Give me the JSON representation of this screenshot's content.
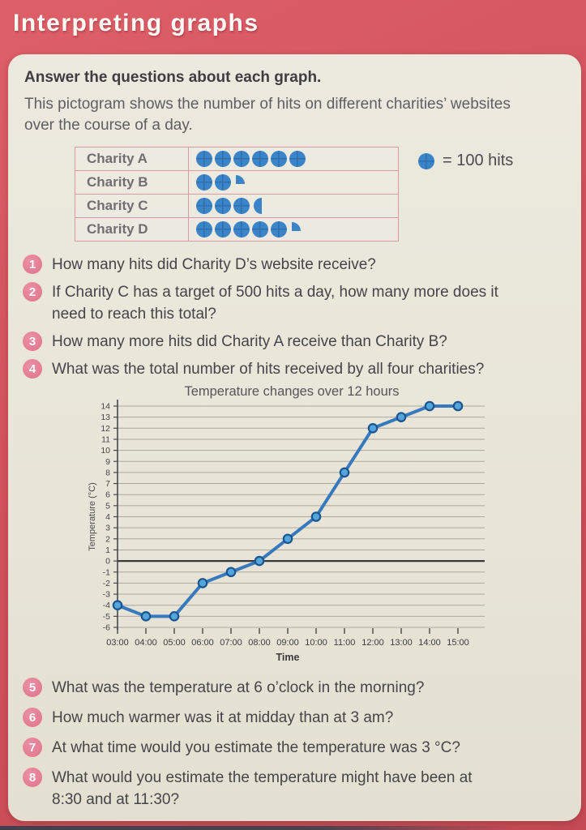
{
  "header": {
    "title": "Interpreting graphs"
  },
  "card": {
    "heading": "Answer the questions about each graph.",
    "intro": "This pictogram shows the number of hits on different charities’ websites over the course of a day."
  },
  "pictogram_key": {
    "label": "= 100 hits"
  },
  "questions_pictogram": [
    {
      "num": "1",
      "text": "How many hits did Charity D’s website receive?"
    },
    {
      "num": "2",
      "text": "If Charity C has a target of 500 hits a day, how many more does it need to reach this total?"
    },
    {
      "num": "3",
      "text": "How many more hits did Charity A receive than Charity B?"
    },
    {
      "num": "4",
      "text": "What was the total number of hits received by all four charities?"
    }
  ],
  "questions_graph": [
    {
      "num": "5",
      "text": "What was the temperature at 6 o’clock in the morning?"
    },
    {
      "num": "6",
      "text": "How much warmer was it at midday than at 3 am?"
    },
    {
      "num": "7",
      "text": "At what time would you estimate the temperature was 3 °C?"
    },
    {
      "num": "8",
      "text": "What would you estimate the temperature might have been at 8:30 and at 11:30?"
    }
  ],
  "colors": {
    "page_background": "#d2525c",
    "card_background": "#e9e6da",
    "symbol_blue": "#3b84c8",
    "symbol_cross_blue": "#2e6fae",
    "table_border_pink": "#d99aa1",
    "badge_pink": "#e27b91",
    "chart_line_blue": "#3779bd",
    "marker_fill_blue": "#54a6da",
    "marker_stroke_blue": "#1a5591",
    "grid_gray": "#aba89e",
    "axis_dark": "#46464a",
    "zero_line_dark": "#38383c"
  },
  "chart_data": [
    {
      "type": "pictogram",
      "unit_label": "= 100 hits",
      "unit_value": 100,
      "categories": [
        "Charity A",
        "Charity B",
        "Charity C",
        "Charity D"
      ],
      "values": [
        600,
        225,
        350,
        525
      ],
      "symbols": [
        {
          "full": 6,
          "fraction": 0
        },
        {
          "full": 2,
          "fraction": 0.25
        },
        {
          "full": 3,
          "fraction": 0.5
        },
        {
          "full": 5,
          "fraction": 0.25
        }
      ]
    },
    {
      "type": "line",
      "title": "Temperature changes over 12 hours",
      "xlabel": "Time",
      "ylabel": "Temperature (°C)",
      "x": [
        "03:00",
        "04:00",
        "05:00",
        "06:00",
        "07:00",
        "08:00",
        "09:00",
        "10:00",
        "11:00",
        "12:00",
        "13:00",
        "14:00",
        "15:00"
      ],
      "values": [
        -4,
        -5,
        -5,
        -2,
        -1,
        0,
        2,
        4,
        8,
        12,
        13,
        14,
        14
      ],
      "ylim": [
        -6,
        14
      ],
      "ytick_step": 1,
      "grid": true,
      "legend": "none"
    }
  ]
}
